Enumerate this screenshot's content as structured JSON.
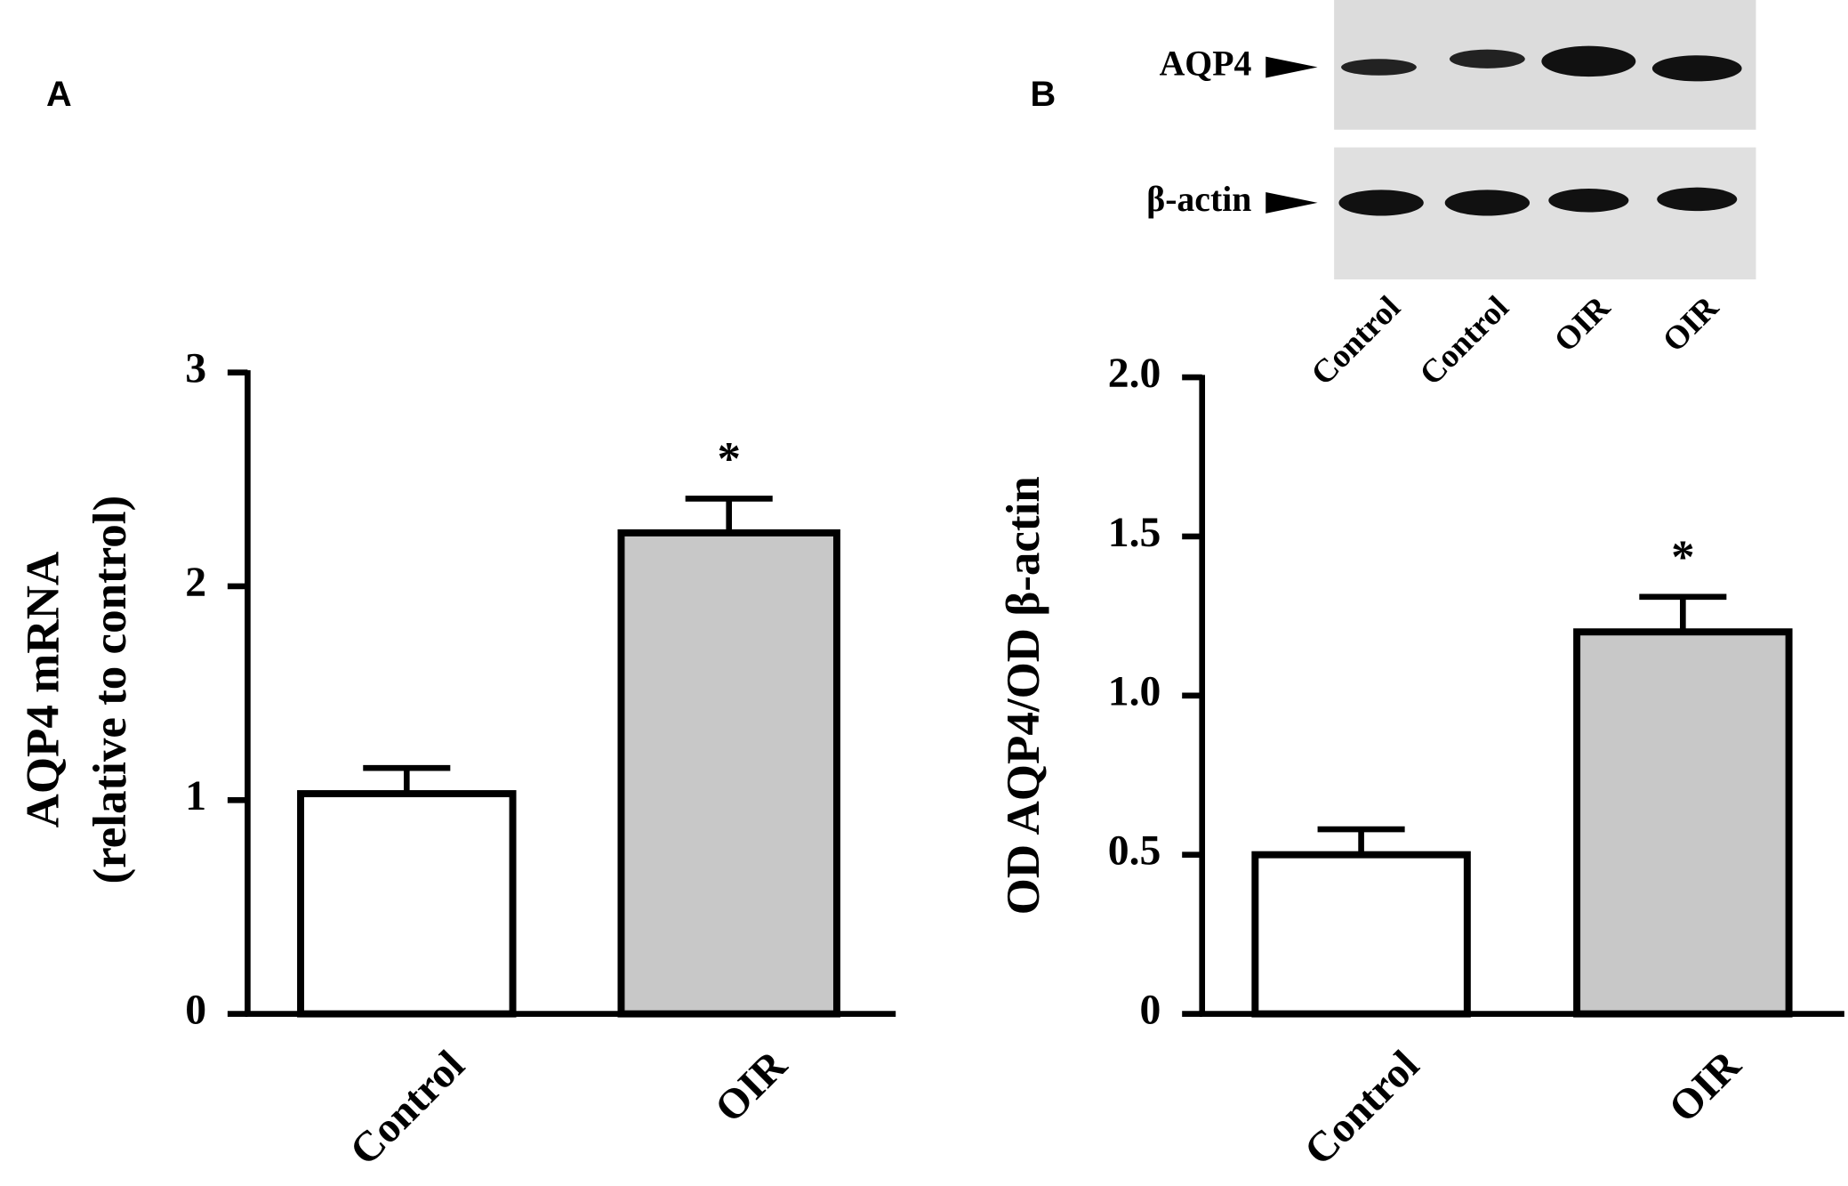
{
  "chart_data": [
    {
      "type": "bar",
      "panel": "A",
      "ylabel": [
        "AQP4 mRNA",
        "(relative to control)"
      ],
      "categories": [
        "Control",
        "OIR"
      ],
      "values": [
        1.03,
        2.25
      ],
      "errors": [
        0.12,
        0.16
      ],
      "colors": [
        "#ffffff",
        "#c8c8c8"
      ],
      "ylim": [
        0,
        3
      ],
      "yticks": [
        0,
        1,
        2,
        3
      ],
      "annotations": [
        {
          "text": "*",
          "category": "OIR"
        }
      ]
    },
    {
      "type": "bar",
      "panel": "B",
      "ylabel": [
        "OD AQP4/OD β-actin"
      ],
      "categories": [
        "Control",
        "OIR"
      ],
      "values": [
        0.5,
        1.2
      ],
      "errors": [
        0.08,
        0.11
      ],
      "colors": [
        "#ffffff",
        "#c8c8c8"
      ],
      "ylim": [
        0,
        2
      ],
      "yticks": [
        0,
        0.5,
        {
          "value": 1,
          "label": "1.0"
        },
        1.5,
        {
          "value": 2,
          "label": "2.0"
        }
      ],
      "annotations": [
        {
          "text": "*",
          "category": "OIR"
        }
      ]
    }
  ],
  "blot": {
    "bands": [
      "AQP4",
      "β-actin"
    ],
    "lanes": [
      "Control",
      "Control",
      "OIR",
      "OIR"
    ]
  }
}
